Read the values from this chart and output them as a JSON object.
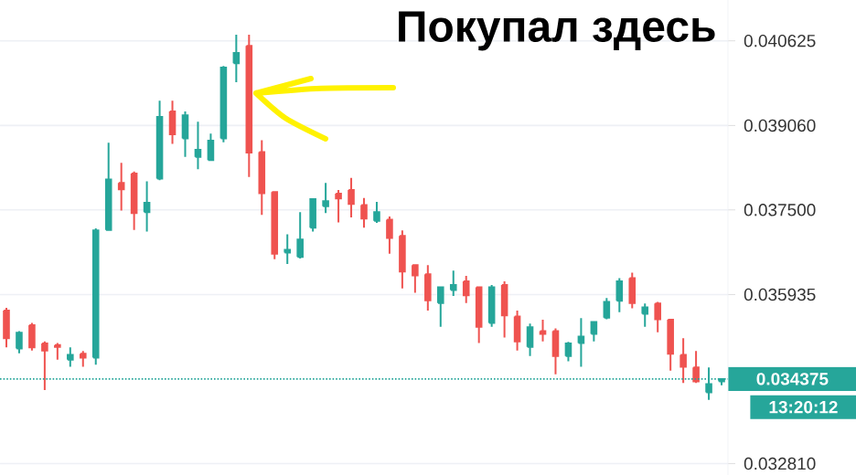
{
  "chart_data": {
    "type": "candlestick",
    "categories": [
      null,
      null,
      null,
      null,
      null,
      null,
      null,
      null,
      null,
      null,
      null,
      null,
      null,
      null,
      null,
      null,
      null,
      null,
      null,
      null,
      null,
      null,
      null,
      null,
      null,
      null,
      null,
      null,
      null,
      null,
      null,
      null,
      null,
      null,
      null,
      null,
      null,
      null,
      null,
      null,
      null,
      null,
      null,
      null,
      null,
      null,
      null,
      null,
      null,
      null,
      null,
      null,
      null,
      null,
      null,
      null,
      null
    ],
    "ohlc": [
      [
        0.03564,
        0.03569,
        0.03496,
        0.03513
      ],
      [
        0.03494,
        0.03526,
        0.03485,
        0.03523
      ],
      [
        0.03537,
        0.03541,
        0.0349,
        0.03496
      ],
      [
        0.03503,
        0.03507,
        0.03417,
        0.0349
      ],
      [
        0.035,
        0.03504,
        0.03473,
        0.03497
      ],
      [
        0.03473,
        0.03496,
        0.0346,
        0.03482
      ],
      [
        0.03484,
        0.03489,
        0.0346,
        0.03477
      ],
      [
        0.03477,
        0.03716,
        0.03464,
        0.03712
      ],
      [
        0.03713,
        0.03874,
        0.03713,
        0.03806
      ],
      [
        0.038,
        0.03837,
        0.03749,
        0.03788
      ],
      [
        0.03817,
        0.03821,
        0.03713,
        0.03744
      ],
      [
        0.03746,
        0.03803,
        0.0371,
        0.03763
      ],
      [
        0.03808,
        0.03952,
        0.03805,
        0.03922
      ],
      [
        0.03932,
        0.03952,
        0.03872,
        0.0389
      ],
      [
        0.03882,
        0.03932,
        0.03848,
        0.03925
      ],
      [
        0.03848,
        0.03913,
        0.03825,
        0.03861
      ],
      [
        0.03842,
        0.03891,
        0.03842,
        0.03878
      ],
      [
        0.03882,
        0.04016,
        0.03875,
        0.04013
      ],
      [
        0.04021,
        0.04074,
        0.03986,
        0.0404
      ],
      [
        0.04053,
        0.04074,
        0.03811,
        0.03856
      ],
      [
        0.03857,
        0.03879,
        0.03741,
        0.03781
      ],
      [
        0.03783,
        0.03783,
        0.03659,
        0.03669
      ],
      [
        0.03671,
        0.03705,
        0.0365,
        0.03676
      ],
      [
        0.03663,
        0.03746,
        0.0366,
        0.03695
      ],
      [
        0.03717,
        0.0377,
        0.0371,
        0.0377
      ],
      [
        0.03757,
        0.038,
        0.03744,
        0.03766
      ],
      [
        0.0378,
        0.03787,
        0.03727,
        0.03771
      ],
      [
        0.03787,
        0.03809,
        0.03736,
        0.03761
      ],
      [
        0.03759,
        0.03772,
        0.03717,
        0.03734
      ],
      [
        0.0373,
        0.03765,
        0.03726,
        0.03746
      ],
      [
        0.03732,
        0.03738,
        0.03669,
        0.03698
      ],
      [
        0.03702,
        0.03712,
        0.03605,
        0.03636
      ],
      [
        0.03648,
        0.03648,
        0.03597,
        0.03629
      ],
      [
        0.03631,
        0.03648,
        0.03564,
        0.03583
      ],
      [
        0.03578,
        0.03607,
        0.03534,
        0.03607
      ],
      [
        0.03602,
        0.03638,
        0.03591,
        0.03611
      ],
      [
        0.03618,
        0.03628,
        0.03578,
        0.03592
      ],
      [
        0.03607,
        0.03607,
        0.03504,
        0.03534
      ],
      [
        0.03541,
        0.03611,
        0.03534,
        0.03607
      ],
      [
        0.03611,
        0.03618,
        0.03514,
        0.03555
      ],
      [
        0.03553,
        0.03564,
        0.0349,
        0.03507
      ],
      [
        0.03497,
        0.0354,
        0.0348,
        0.03533
      ],
      [
        0.03526,
        0.03547,
        0.03507,
        0.03521
      ],
      [
        0.03526,
        0.03531,
        0.03446,
        0.0348
      ],
      [
        0.0348,
        0.03506,
        0.0347,
        0.03503
      ],
      [
        0.03504,
        0.0355,
        0.0346,
        0.03516
      ],
      [
        0.03521,
        0.03543,
        0.03507,
        0.03543
      ],
      [
        0.03551,
        0.03587,
        0.03548,
        0.0358
      ],
      [
        0.03582,
        0.03624,
        0.03561,
        0.03618
      ],
      [
        0.03624,
        0.03634,
        0.03568,
        0.03578
      ],
      [
        0.03558,
        0.03577,
        0.03534,
        0.0357
      ],
      [
        0.03577,
        0.0358,
        0.03524,
        0.03548
      ],
      [
        0.03547,
        0.03547,
        0.03453,
        0.03484
      ],
      [
        0.03482,
        0.03513,
        0.0343,
        0.0346
      ],
      [
        0.03459,
        0.03489,
        0.0343,
        0.03433
      ],
      [
        0.03413,
        0.03459,
        0.03399,
        0.03428
      ],
      [
        0.03433,
        0.03438,
        0.03426,
        0.034375
      ]
    ],
    "colors": [
      "#ef5350",
      "#26a69a",
      "#ef5350",
      "#ef5350",
      "#ef5350",
      "#26a69a",
      "#ef5350",
      "#26a69a",
      "#26a69a",
      "#ef5350",
      "#ef5350",
      "#26a69a",
      "#26a69a",
      "#ef5350",
      "#26a69a",
      "#26a69a",
      "#26a69a",
      "#26a69a",
      "#26a69a",
      "#ef5350",
      "#ef5350",
      "#ef5350",
      "#26a69a",
      "#26a69a",
      "#26a69a",
      "#26a69a",
      "#ef5350",
      "#ef5350",
      "#ef5350",
      "#26a69a",
      "#ef5350",
      "#ef5350",
      "#ef5350",
      "#ef5350",
      "#26a69a",
      "#26a69a",
      "#ef5350",
      "#ef5350",
      "#26a69a",
      "#ef5350",
      "#ef5350",
      "#26a69a",
      "#ef5350",
      "#ef5350",
      "#26a69a",
      "#26a69a",
      "#26a69a",
      "#26a69a",
      "#26a69a",
      "#ef5350",
      "#26a69a",
      "#ef5350",
      "#ef5350",
      "#ef5350",
      "#ef5350",
      "#26a69a",
      "#26a69a"
    ],
    "ylim": [
      0.0326,
      0.04138
    ],
    "yticks": [
      0.040625,
      {
        "value": 0.03906,
        "label": "0.039060"
      },
      {
        "value": 0.0375,
        "label": "0.037500"
      },
      0.035935,
      {
        "value": 0.03281,
        "label": "0.032810"
      }
    ],
    "tick_labels": "y",
    "grid": "y",
    "ref_lines": [
      {
        "axis": "y",
        "value": 0.034375,
        "label": "0.034375",
        "color": "#26a69a",
        "line_style": "dotted"
      }
    ],
    "annotations": [
      "Покупал здесь",
      "13:20:12"
    ]
  }
}
